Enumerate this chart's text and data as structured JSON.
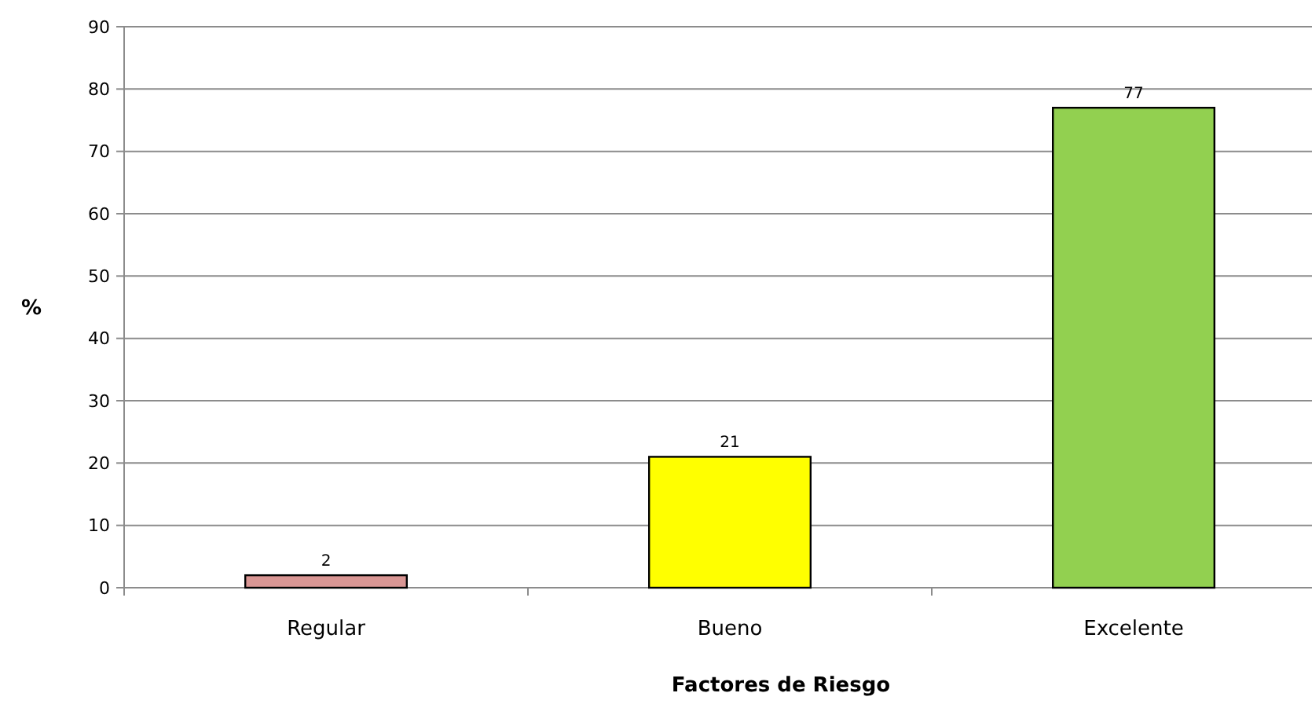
{
  "chart_data": {
    "type": "bar",
    "xlabel": "Factores de Riesgo",
    "ylabel": "%",
    "categories": [
      "Regular",
      "Bueno",
      "Excelente"
    ],
    "values": [
      2,
      21,
      77
    ],
    "colors": [
      "#d99694",
      "#ffff00",
      "#92d050"
    ],
    "ylim": [
      0,
      90
    ],
    "yticks": [
      0,
      10,
      20,
      30,
      40,
      50,
      60,
      70,
      80,
      90
    ],
    "grid": "y",
    "data_labels": true
  }
}
